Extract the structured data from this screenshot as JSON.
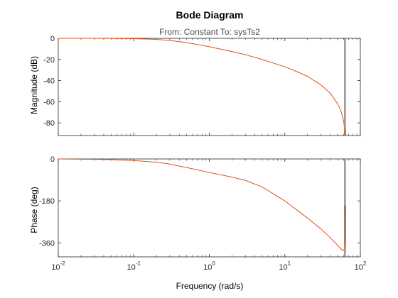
{
  "chart_data": {
    "type": "line",
    "title": "Bode Diagram",
    "subtitle": "From: Constant  To: sysTs2",
    "xlabel": "Frequency (rad/s)",
    "x_scale": "log",
    "xlim": [
      0.01,
      100
    ],
    "x_ticks": [
      {
        "base": "10",
        "exp": "-2"
      },
      {
        "base": "10",
        "exp": "-1"
      },
      {
        "base": "10",
        "exp": "0"
      },
      {
        "base": "10",
        "exp": "1"
      },
      {
        "base": "10",
        "exp": "2"
      }
    ],
    "nyquist_frequency": 62.8,
    "colors": {
      "line": "#d95319",
      "nyquist_line": "#7f7f7f",
      "axes": "#262626"
    },
    "grid": false,
    "panels": [
      {
        "name": "magnitude",
        "ylabel": "Magnitude (dB)",
        "ylim": [
          -92,
          0
        ],
        "y_ticks": [
          "0",
          "-20",
          "-40",
          "-60",
          "-80"
        ],
        "series": [
          {
            "x": [
              0.01,
              0.02,
              0.05,
              0.1,
              0.2,
              0.3,
              0.5,
              1,
              2,
              3,
              5,
              10,
              15,
              20,
              30,
              40,
              50,
              55,
              60,
              62,
              62.8
            ],
            "y": [
              0,
              0,
              -0.1,
              -0.3,
              -1,
              -2,
              -4,
              -8,
              -12.5,
              -15.5,
              -20,
              -27,
              -32,
              -36,
              -44,
              -52,
              -62,
              -68,
              -78,
              -86,
              -92
            ]
          }
        ]
      },
      {
        "name": "phase",
        "ylabel": "Phase (deg)",
        "ylim": [
          -420,
          0
        ],
        "y_ticks": [
          "0",
          "-180",
          "-360"
        ],
        "series": [
          {
            "x": [
              0.01,
              0.02,
              0.05,
              0.1,
              0.2,
              0.3,
              0.5,
              1,
              2,
              3,
              5,
              10,
              20,
              30,
              40,
              50,
              55,
              58,
              60,
              61.5,
              62.3,
              62.8
            ],
            "y": [
              0,
              -1,
              -3,
              -7,
              -14,
              -22,
              -37,
              -58,
              -78,
              -92,
              -120,
              -180,
              -254,
              -300,
              -338,
              -370,
              -385,
              -392,
              -392,
              -385,
              -360,
              -200
            ]
          }
        ]
      }
    ]
  }
}
